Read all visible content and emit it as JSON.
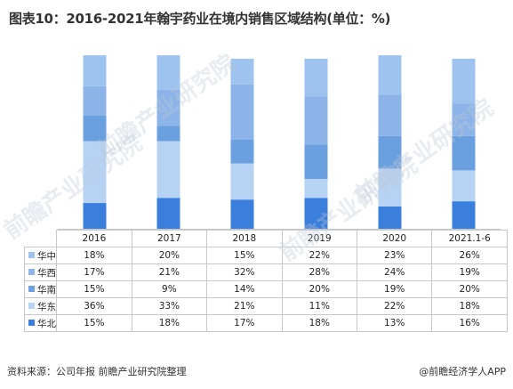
{
  "title": "图表10：2016-2021年翰宇药业在境内销售区域结构(单位：%)",
  "footer": {
    "source": "资料来源：公司年报 前瞻产业研究院整理",
    "brand": "@前瞻经济学人APP"
  },
  "watermark": "前瞻产业研究院",
  "chart_data": {
    "type": "bar",
    "stacked": true,
    "categories": [
      "2016",
      "2017",
      "2018",
      "2019",
      "2020",
      "2021.1-6"
    ],
    "series": [
      {
        "name": "华中",
        "color": "#9dc3ee",
        "values": [
          18,
          20,
          15,
          22,
          23,
          26
        ],
        "labels": [
          "18%",
          "20%",
          "15%",
          "22%",
          "23%",
          "26%"
        ]
      },
      {
        "name": "华西",
        "color": "#8cb4e8",
        "values": [
          17,
          21,
          32,
          28,
          24,
          19
        ],
        "labels": [
          "17%",
          "21%",
          "32%",
          "28%",
          "24%",
          "19%"
        ]
      },
      {
        "name": "华南",
        "color": "#6a9fe0",
        "values": [
          15,
          9,
          14,
          20,
          19,
          20
        ],
        "labels": [
          "15%",
          "9%",
          "14%",
          "20%",
          "19%",
          "20%"
        ]
      },
      {
        "name": "华东",
        "color": "#b7d3f4",
        "values": [
          36,
          33,
          21,
          11,
          22,
          18
        ],
        "labels": [
          "36%",
          "33%",
          "21%",
          "11%",
          "22%",
          "18%"
        ]
      },
      {
        "name": "华北",
        "color": "#3b7fdc",
        "values": [
          15,
          18,
          17,
          18,
          13,
          16
        ],
        "labels": [
          "15%",
          "18%",
          "17%",
          "18%",
          "13%",
          "16%"
        ]
      }
    ],
    "ylim": [
      0,
      100
    ],
    "grid": false,
    "legend": "table"
  }
}
